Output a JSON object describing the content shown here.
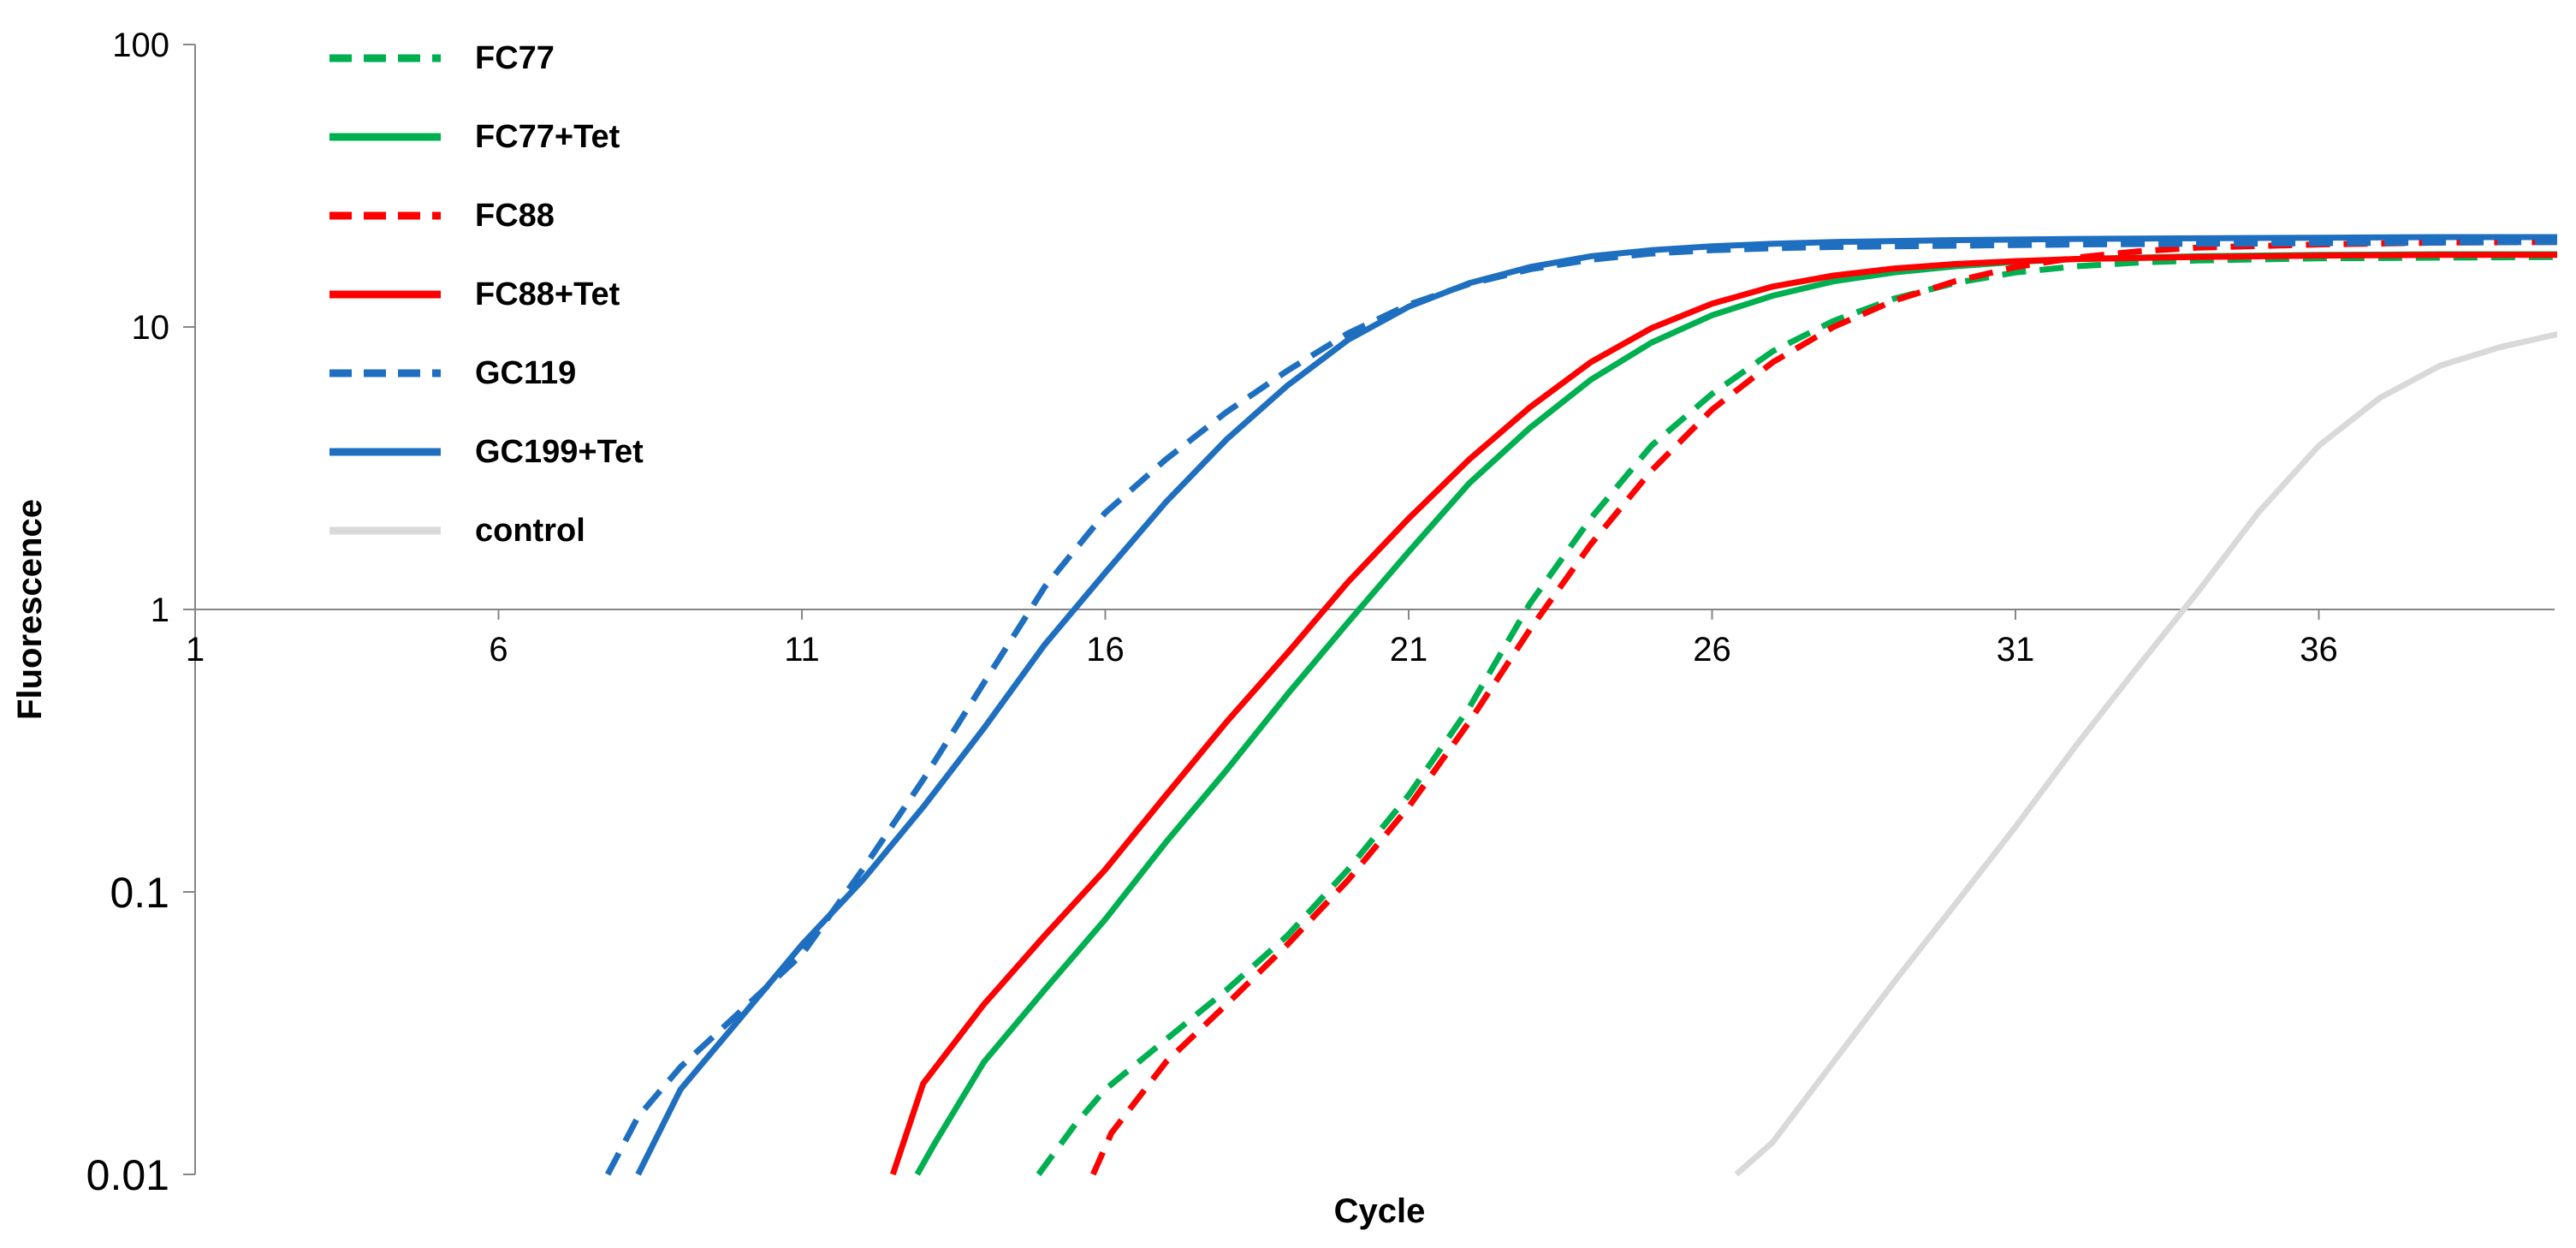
{
  "chart_data": {
    "type": "line",
    "title": "",
    "xlabel": "Cycle",
    "ylabel": "Fluorescence",
    "yscale": "log",
    "ylim": [
      0.01,
      100
    ],
    "xlim": [
      1,
      40
    ],
    "x_ticks": [
      1,
      6,
      11,
      16,
      21,
      26,
      31,
      36
    ],
    "x_tick_labels": [
      "1",
      "6",
      "11",
      "16",
      "21",
      "26",
      "31",
      "36"
    ],
    "x_axis_crosses_y_at": 1,
    "y_ticks": [
      0.01,
      0.1,
      1,
      10,
      100
    ],
    "y_tick_labels": [
      "0.01",
      "0.1",
      "1",
      "10",
      "100"
    ],
    "legend_position": "top-left",
    "grid": false,
    "series": [
      {
        "name": "FC77",
        "color": "#00b050",
        "dash": "dashed",
        "points": [
          [
            14.9,
            0.01
          ],
          [
            15.5,
            0.015
          ],
          [
            16.0,
            0.02
          ],
          [
            17,
            0.03
          ],
          [
            18,
            0.045
          ],
          [
            19,
            0.07
          ],
          [
            20,
            0.12
          ],
          [
            21,
            0.22
          ],
          [
            22,
            0.45
          ],
          [
            23,
            1.05
          ],
          [
            24,
            2.1
          ],
          [
            25,
            3.8
          ],
          [
            26,
            5.8
          ],
          [
            27,
            8.2
          ],
          [
            28,
            10.5
          ],
          [
            29,
            12.6
          ],
          [
            30,
            14.3
          ],
          [
            31,
            15.6
          ],
          [
            32,
            16.4
          ],
          [
            33,
            16.9
          ],
          [
            34,
            17.2
          ],
          [
            36,
            17.5
          ],
          [
            38,
            17.6
          ],
          [
            40,
            17.7
          ]
        ]
      },
      {
        "name": "FC77+Tet",
        "color": "#00b050",
        "dash": "solid",
        "points": [
          [
            12.9,
            0.01
          ],
          [
            13.2,
            0.013
          ],
          [
            14,
            0.025
          ],
          [
            15,
            0.045
          ],
          [
            16,
            0.08
          ],
          [
            17,
            0.15
          ],
          [
            18,
            0.27
          ],
          [
            19,
            0.5
          ],
          [
            20,
            0.9
          ],
          [
            21,
            1.6
          ],
          [
            22,
            2.8
          ],
          [
            23,
            4.4
          ],
          [
            24,
            6.5
          ],
          [
            25,
            8.8
          ],
          [
            26,
            11.0
          ],
          [
            27,
            12.9
          ],
          [
            28,
            14.5
          ],
          [
            29,
            15.6
          ],
          [
            30,
            16.4
          ],
          [
            31,
            17.0
          ],
          [
            32,
            17.4
          ],
          [
            34,
            17.8
          ],
          [
            36,
            18.0
          ],
          [
            38,
            18.1
          ],
          [
            40,
            18.1
          ]
        ]
      },
      {
        "name": "FC88",
        "color": "#ff0000",
        "dash": "dashed",
        "points": [
          [
            15.8,
            0.01
          ],
          [
            16.1,
            0.014
          ],
          [
            17,
            0.025
          ],
          [
            18,
            0.04
          ],
          [
            19,
            0.065
          ],
          [
            20,
            0.11
          ],
          [
            21,
            0.2
          ],
          [
            22,
            0.4
          ],
          [
            23,
            0.85
          ],
          [
            24,
            1.7
          ],
          [
            25,
            3.1
          ],
          [
            26,
            5.1
          ],
          [
            27,
            7.5
          ],
          [
            28,
            10.0
          ],
          [
            29,
            12.4
          ],
          [
            30,
            14.5
          ],
          [
            31,
            16.3
          ],
          [
            32,
            17.6
          ],
          [
            33,
            18.5
          ],
          [
            34,
            19.1
          ],
          [
            36,
            19.6
          ],
          [
            38,
            19.9
          ],
          [
            40,
            20.0
          ]
        ]
      },
      {
        "name": "FC88+Tet",
        "color": "#ff0000",
        "dash": "solid",
        "points": [
          [
            12.5,
            0.01
          ],
          [
            13,
            0.021
          ],
          [
            14,
            0.04
          ],
          [
            15,
            0.07
          ],
          [
            16,
            0.12
          ],
          [
            17,
            0.22
          ],
          [
            18,
            0.4
          ],
          [
            19,
            0.7
          ],
          [
            20,
            1.25
          ],
          [
            21,
            2.1
          ],
          [
            22,
            3.4
          ],
          [
            23,
            5.2
          ],
          [
            24,
            7.5
          ],
          [
            25,
            9.9
          ],
          [
            26,
            12.1
          ],
          [
            27,
            13.9
          ],
          [
            28,
            15.2
          ],
          [
            29,
            16.1
          ],
          [
            30,
            16.7
          ],
          [
            31,
            17.1
          ],
          [
            32,
            17.4
          ],
          [
            34,
            17.7
          ],
          [
            36,
            17.9
          ],
          [
            38,
            18.0
          ],
          [
            40,
            18.0
          ]
        ]
      },
      {
        "name": "GC119",
        "color": "#1f6fc0",
        "dash": "dashed",
        "points": [
          [
            7.8,
            0.01
          ],
          [
            8.3,
            0.016
          ],
          [
            9,
            0.024
          ],
          [
            10,
            0.038
          ],
          [
            11,
            0.06
          ],
          [
            12,
            0.12
          ],
          [
            13,
            0.25
          ],
          [
            14,
            0.55
          ],
          [
            15,
            1.2
          ],
          [
            16,
            2.2
          ],
          [
            17,
            3.4
          ],
          [
            18,
            5.0
          ],
          [
            19,
            7.0
          ],
          [
            20,
            9.5
          ],
          [
            21,
            12.0
          ],
          [
            22,
            14.2
          ],
          [
            23,
            16.0
          ],
          [
            24,
            17.3
          ],
          [
            25,
            18.2
          ],
          [
            26,
            18.7
          ],
          [
            27,
            19.0
          ],
          [
            28,
            19.2
          ],
          [
            30,
            19.4
          ],
          [
            32,
            19.6
          ],
          [
            34,
            19.7
          ],
          [
            36,
            19.8
          ],
          [
            38,
            19.9
          ],
          [
            40,
            20.0
          ]
        ]
      },
      {
        "name": "GC199+Tet",
        "color": "#1f6fc0",
        "dash": "solid",
        "points": [
          [
            8.3,
            0.01
          ],
          [
            9,
            0.02
          ],
          [
            10,
            0.036
          ],
          [
            11,
            0.065
          ],
          [
            12,
            0.11
          ],
          [
            13,
            0.2
          ],
          [
            14,
            0.38
          ],
          [
            15,
            0.75
          ],
          [
            16,
            1.35
          ],
          [
            17,
            2.4
          ],
          [
            18,
            4.0
          ],
          [
            19,
            6.2
          ],
          [
            20,
            9.0
          ],
          [
            21,
            11.8
          ],
          [
            22,
            14.3
          ],
          [
            23,
            16.3
          ],
          [
            24,
            17.8
          ],
          [
            25,
            18.7
          ],
          [
            26,
            19.3
          ],
          [
            27,
            19.7
          ],
          [
            28,
            20.0
          ],
          [
            30,
            20.3
          ],
          [
            32,
            20.5
          ],
          [
            34,
            20.6
          ],
          [
            36,
            20.7
          ],
          [
            38,
            20.8
          ],
          [
            40,
            20.8
          ]
        ]
      },
      {
        "name": "control",
        "color": "#d9d9d9",
        "dash": "solid",
        "points": [
          [
            26.4,
            0.01
          ],
          [
            27,
            0.013
          ],
          [
            28,
            0.025
          ],
          [
            29,
            0.048
          ],
          [
            30,
            0.09
          ],
          [
            31,
            0.17
          ],
          [
            32,
            0.33
          ],
          [
            33,
            0.62
          ],
          [
            34,
            1.15
          ],
          [
            35,
            2.2
          ],
          [
            36,
            3.8
          ],
          [
            37,
            5.6
          ],
          [
            38,
            7.3
          ],
          [
            39,
            8.5
          ],
          [
            40,
            9.5
          ]
        ]
      }
    ]
  }
}
